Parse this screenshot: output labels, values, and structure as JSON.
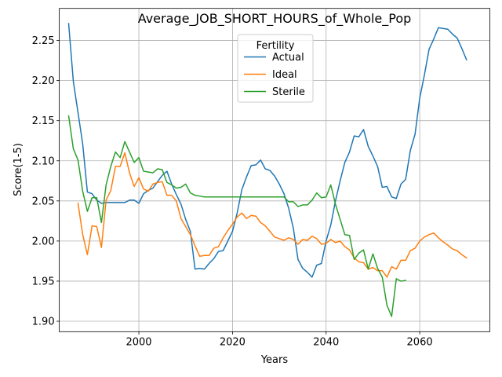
{
  "chart_data": {
    "type": "line",
    "title": "Average_JOB_SHORT_HOURS_of_Whole_Pop",
    "xlabel": "Years",
    "ylabel": "Score(1-5)",
    "xlim": [
      1983,
      2075
    ],
    "ylim": [
      1.887,
      2.29
    ],
    "xticks": [
      2000,
      2020,
      2040,
      2060
    ],
    "yticks": [
      1.9,
      1.95,
      2.0,
      2.05,
      2.1,
      2.15,
      2.2,
      2.25
    ],
    "xtick_labels": [
      "2000",
      "2020",
      "2040",
      "2060"
    ],
    "ytick_labels": [
      "1.90",
      "1.95",
      "2.00",
      "2.05",
      "2.10",
      "2.15",
      "2.20",
      "2.25"
    ],
    "grid": true,
    "legend": {
      "title": "Fertility",
      "position": "upper-center"
    },
    "series": [
      {
        "name": "Actual",
        "color": "#1f77b4",
        "x": [
          1985,
          1986,
          1987,
          1988,
          1989,
          1990,
          1991,
          1992,
          1993,
          1994,
          1995,
          1996,
          1997,
          1998,
          1999,
          2000,
          2001,
          2002,
          2003,
          2004,
          2005,
          2006,
          2007,
          2008,
          2009,
          2010,
          2011,
          2012,
          2013,
          2014,
          2015,
          2016,
          2017,
          2018,
          2019,
          2020,
          2021,
          2022,
          2023,
          2024,
          2025,
          2026,
          2027,
          2028,
          2029,
          2030,
          2031,
          2032,
          2033,
          2034,
          2035,
          2036,
          2037,
          2038,
          2039,
          2040,
          2041,
          2042,
          2043,
          2044,
          2045,
          2046,
          2047,
          2048,
          2049,
          2050,
          2051,
          2052,
          2053,
          2054,
          2055,
          2056,
          2057,
          2058,
          2059,
          2060,
          2061,
          2062,
          2063,
          2064,
          2065,
          2066,
          2067,
          2068,
          2069,
          2070
        ],
        "values": [
          2.271,
          2.199,
          2.16,
          2.121,
          2.061,
          2.059,
          2.051,
          2.047,
          2.048,
          2.048,
          2.048,
          2.048,
          2.048,
          2.051,
          2.051,
          2.047,
          2.059,
          2.063,
          2.066,
          2.074,
          2.082,
          2.087,
          2.071,
          2.058,
          2.046,
          2.027,
          2.012,
          1.965,
          1.966,
          1.965,
          1.972,
          1.978,
          1.987,
          1.988,
          2.0,
          2.012,
          2.035,
          2.064,
          2.08,
          2.094,
          2.095,
          2.101,
          2.09,
          2.088,
          2.081,
          2.071,
          2.059,
          2.041,
          2.016,
          1.977,
          1.966,
          1.961,
          1.955,
          1.97,
          1.972,
          2.0,
          2.02,
          2.05,
          2.075,
          2.098,
          2.111,
          2.131,
          2.13,
          2.139,
          2.118,
          2.106,
          2.093,
          2.067,
          2.068,
          2.055,
          2.053,
          2.071,
          2.077,
          2.113,
          2.133,
          2.178,
          2.207,
          2.239,
          2.252,
          2.266,
          2.265,
          2.264,
          2.258,
          2.253,
          2.24,
          2.226
        ]
      },
      {
        "name": "Ideal",
        "color": "#ff7f0e",
        "x": [
          1987,
          1988,
          1989,
          1990,
          1991,
          1992,
          1993,
          1994,
          1995,
          1996,
          1997,
          1998,
          1999,
          2000,
          2001,
          2002,
          2003,
          2004,
          2005,
          2006,
          2007,
          2008,
          2009,
          2010,
          2011,
          2012,
          2013,
          2014,
          2015,
          2016,
          2017,
          2018,
          2019,
          2020,
          2021,
          2022,
          2023,
          2024,
          2025,
          2026,
          2027,
          2028,
          2029,
          2030,
          2031,
          2032,
          2033,
          2034,
          2035,
          2036,
          2037,
          2038,
          2039,
          2040,
          2041,
          2042,
          2043,
          2044,
          2045,
          2046,
          2047,
          2048,
          2049,
          2050,
          2051,
          2052,
          2053,
          2054,
          2055,
          2056,
          2057,
          2058,
          2059,
          2060,
          2061,
          2062,
          2063,
          2064,
          2065,
          2066,
          2067,
          2068,
          2069,
          2070
        ],
        "values": [
          2.047,
          2.008,
          1.983,
          2.019,
          2.018,
          1.992,
          2.051,
          2.063,
          2.093,
          2.093,
          2.11,
          2.085,
          2.068,
          2.079,
          2.065,
          2.062,
          2.071,
          2.073,
          2.074,
          2.057,
          2.057,
          2.05,
          2.028,
          2.018,
          2.008,
          1.994,
          1.981,
          1.982,
          1.982,
          1.991,
          1.993,
          2.004,
          2.013,
          2.021,
          2.03,
          2.035,
          2.028,
          2.032,
          2.031,
          2.023,
          2.019,
          2.012,
          2.005,
          2.003,
          2.001,
          2.004,
          2.002,
          1.996,
          2.002,
          2.001,
          2.006,
          2.003,
          1.996,
          1.997,
          2.002,
          1.998,
          2.0,
          1.993,
          1.989,
          1.979,
          1.974,
          1.973,
          1.965,
          1.967,
          1.963,
          1.963,
          1.955,
          1.968,
          1.965,
          1.976,
          1.976,
          1.988,
          1.991,
          2.0,
          2.005,
          2.008,
          2.01,
          2.004,
          1.999,
          1.995,
          1.99,
          1.988,
          1.983,
          1.979
        ]
      },
      {
        "name": "Sterile",
        "color": "#2ca02c",
        "x": [
          1985,
          1986,
          1987,
          1988,
          1989,
          1990,
          1991,
          1992,
          1993,
          1994,
          1995,
          1996,
          1997,
          1998,
          1999,
          2000,
          2001,
          2002,
          2003,
          2004,
          2005,
          2006,
          2007,
          2008,
          2009,
          2010,
          2011,
          2012,
          2013,
          2014,
          2015,
          2016,
          2017,
          2018,
          2019,
          2020,
          2021,
          2022,
          2023,
          2024,
          2025,
          2026,
          2027,
          2028,
          2029,
          2030,
          2031,
          2032,
          2033,
          2034,
          2035,
          2036,
          2037,
          2038,
          2039,
          2040,
          2041,
          2042,
          2043,
          2044,
          2045,
          2046,
          2047,
          2048,
          2049,
          2050,
          2051,
          2052,
          2053,
          2054,
          2055,
          2056,
          2057
        ],
        "values": [
          2.156,
          2.115,
          2.101,
          2.062,
          2.037,
          2.054,
          2.054,
          2.023,
          2.07,
          2.093,
          2.111,
          2.104,
          2.124,
          2.111,
          2.098,
          2.104,
          2.087,
          2.086,
          2.085,
          2.09,
          2.089,
          2.073,
          2.07,
          2.066,
          2.067,
          2.071,
          2.06,
          2.057,
          2.056,
          2.055,
          2.055,
          2.055,
          2.055,
          2.055,
          2.055,
          2.055,
          2.055,
          2.055,
          2.055,
          2.055,
          2.055,
          2.055,
          2.055,
          2.055,
          2.055,
          2.055,
          2.055,
          2.049,
          2.049,
          2.043,
          2.045,
          2.045,
          2.051,
          2.06,
          2.054,
          2.055,
          2.07,
          2.046,
          2.027,
          2.008,
          2.007,
          1.977,
          1.985,
          1.989,
          1.965,
          1.984,
          1.966,
          1.955,
          1.92,
          1.906,
          1.953,
          1.95,
          1.951
        ]
      }
    ]
  }
}
